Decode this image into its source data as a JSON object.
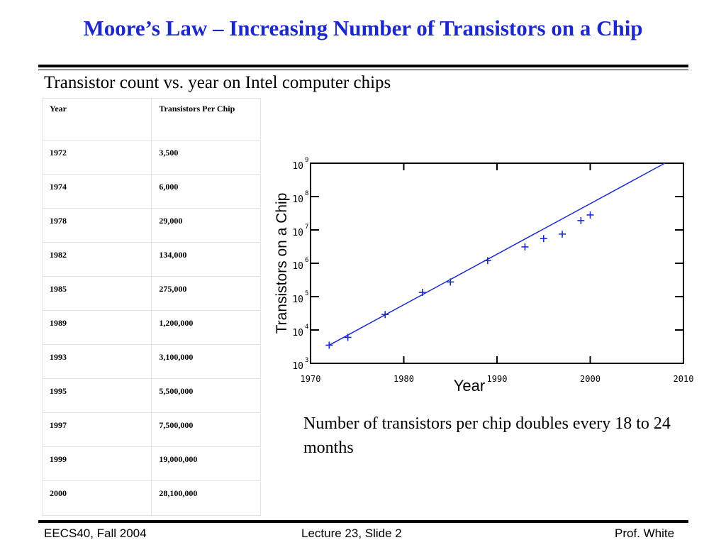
{
  "slide": {
    "title": "Moore’s Law – Increasing Number of  Transistors on a Chip",
    "subtitle": "Transistor count vs. year on Intel computer chips",
    "note": "Number of transistors per chip doubles every 18 to 24 months",
    "title_color": "#1c28c8",
    "plot_color": "#1a2bd0"
  },
  "table": {
    "headers": [
      "Year",
      "Transistors Per Chip"
    ],
    "rows": [
      [
        "1972",
        "3,500"
      ],
      [
        "1974",
        "6,000"
      ],
      [
        "1978",
        "29,000"
      ],
      [
        "1982",
        "134,000"
      ],
      [
        "1985",
        "275,000"
      ],
      [
        "1989",
        "1,200,000"
      ],
      [
        "1993",
        "3,100,000"
      ],
      [
        "1995",
        "5,500,000"
      ],
      [
        "1997",
        "7,500,000"
      ],
      [
        "1999",
        "19,000,000"
      ],
      [
        "2000",
        "28,100,000"
      ]
    ]
  },
  "chart_data": {
    "type": "scatter",
    "xlabel": "Year",
    "ylabel": "Transistors on a Chip",
    "xlim": [
      1970,
      2010
    ],
    "ylim": [
      1000,
      1000000000
    ],
    "yscale": "log",
    "grid": false,
    "x_ticks": [
      "1970",
      "1980",
      "1990",
      "2000",
      "2010"
    ],
    "y_ticks": [
      {
        "base": "10",
        "exp": "9"
      },
      {
        "base": "10",
        "exp": "8"
      },
      {
        "base": "10",
        "exp": "7"
      },
      {
        "base": "10",
        "exp": "6"
      },
      {
        "base": "10",
        "exp": "5"
      },
      {
        "base": "10",
        "exp": "4"
      },
      {
        "base": "10",
        "exp": "3"
      }
    ],
    "points": {
      "x": [
        1972,
        1974,
        1978,
        1982,
        1985,
        1989,
        1993,
        1995,
        1997,
        1999,
        2000
      ],
      "y": [
        3500,
        6000,
        29000,
        134000,
        275000,
        1200000,
        3100000,
        5500000,
        7500000,
        19000000,
        28100000
      ]
    },
    "trend_line": {
      "x": [
        1972,
        2008
      ],
      "y": [
        3500,
        1000000000
      ]
    }
  },
  "footer": {
    "left": "EECS40, Fall 2004",
    "center": "Lecture 23, Slide 2",
    "right": "Prof. White"
  }
}
